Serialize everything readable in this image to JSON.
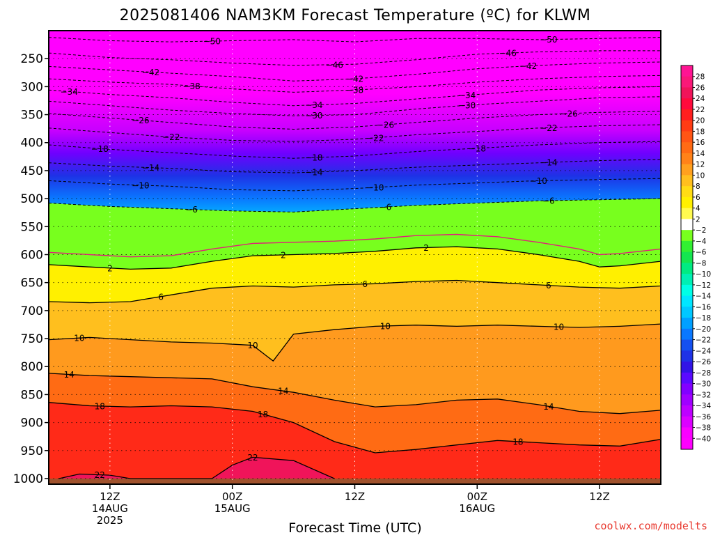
{
  "chart_data": {
    "type": "heatmap",
    "title": "2025081406 NAM3KM Forecast Temperature (ºC) for KLWM",
    "xlabel": "Forecast Time (UTC)",
    "ylabel": "",
    "credit": "coolwx.com/modelts",
    "x_unit": "forecast hour",
    "xlim": [
      6,
      66
    ],
    "x_ticks": [
      {
        "x": 12,
        "l1": "12Z",
        "l2": "14AUG",
        "l3": "2025"
      },
      {
        "x": 24,
        "l1": "00Z",
        "l2": "15AUG",
        "l3": ""
      },
      {
        "x": 36,
        "l1": "12Z",
        "l2": "",
        "l3": ""
      },
      {
        "x": 48,
        "l1": "00Z",
        "l2": "16AUG",
        "l3": ""
      },
      {
        "x": 60,
        "l1": "12Z",
        "l2": "",
        "l3": ""
      }
    ],
    "y_unit": "hPa",
    "ylim": [
      1010,
      200
    ],
    "y_ticks": [
      "250",
      "300",
      "350",
      "400",
      "450",
      "500",
      "550",
      "600",
      "650",
      "700",
      "750",
      "800",
      "850",
      "900",
      "950",
      "1000"
    ],
    "ground_level_hPa": 1000,
    "ground_color": "#a0522d",
    "freezing_line_color": "#e0207a",
    "colorbar": {
      "ticks": [
        "28",
        "26",
        "24",
        "22",
        "20",
        "18",
        "16",
        "14",
        "12",
        "10",
        "8",
        "6",
        "4",
        "2",
        "−2",
        "−4",
        "−6",
        "−8",
        "−10",
        "−12",
        "−14",
        "−16",
        "−18",
        "−20",
        "−22",
        "−24",
        "−26",
        "−28",
        "−30",
        "−32",
        "−34",
        "−36",
        "−38",
        "−40"
      ],
      "colors": [
        "#ff1493",
        "#fa1878",
        "#f0145a",
        "#ff0a3c",
        "#ff1f1f",
        "#ff3c14",
        "#ff5514",
        "#ff6b14",
        "#ff8219",
        "#ffa01e",
        "#ffbf1e",
        "#ffdc14",
        "#fff000",
        "#fffa50",
        "#ffffff",
        "#78ff1e",
        "#32f032",
        "#14e650",
        "#00eb82",
        "#00f0b4",
        "#00ffe6",
        "#00e6ff",
        "#00c8ff",
        "#00a0ff",
        "#0a78ff",
        "#1450f0",
        "#1e32e6",
        "#3214e6",
        "#5a0aff",
        "#8200ff",
        "#a000ff",
        "#be00ff",
        "#dc00ff",
        "#fa00ff",
        "#ff00ff"
      ]
    },
    "contour_labels": [
      "−50",
      "−46",
      "−42",
      "−38",
      "−34",
      "−30",
      "−26",
      "−22",
      "−18",
      "−14",
      "−10",
      "−6",
      "2",
      "6",
      "10",
      "14",
      "18",
      "22"
    ],
    "isotherms": [
      {
        "value": -50,
        "positive": false,
        "labels_at": [
          22,
          55
        ],
        "points": [
          [
            6,
            212
          ],
          [
            12,
            218
          ],
          [
            18,
            220
          ],
          [
            24,
            218
          ],
          [
            30,
            216
          ],
          [
            36,
            220
          ],
          [
            42,
            214
          ],
          [
            48,
            214
          ],
          [
            54,
            216
          ],
          [
            60,
            214
          ],
          [
            66,
            212
          ]
        ]
      },
      {
        "value": -46,
        "positive": false,
        "labels_at": [
          34,
          51
        ],
        "points": [
          [
            6,
            240
          ],
          [
            12,
            248
          ],
          [
            18,
            252
          ],
          [
            24,
            258
          ],
          [
            30,
            262
          ],
          [
            36,
            260
          ],
          [
            42,
            252
          ],
          [
            48,
            242
          ],
          [
            54,
            238
          ],
          [
            60,
            236
          ],
          [
            66,
            236
          ]
        ]
      },
      {
        "value": -42,
        "positive": false,
        "labels_at": [
          16,
          36,
          53
        ],
        "points": [
          [
            6,
            264
          ],
          [
            12,
            270
          ],
          [
            18,
            276
          ],
          [
            24,
            282
          ],
          [
            30,
            290
          ],
          [
            36,
            286
          ],
          [
            42,
            278
          ],
          [
            48,
            268
          ],
          [
            54,
            262
          ],
          [
            60,
            258
          ],
          [
            66,
            256
          ]
        ]
      },
      {
        "value": -38,
        "positive": false,
        "labels_at": [
          20,
          36
        ],
        "points": [
          [
            6,
            286
          ],
          [
            12,
            292
          ],
          [
            18,
            296
          ],
          [
            24,
            304
          ],
          [
            30,
            310
          ],
          [
            36,
            306
          ],
          [
            42,
            300
          ],
          [
            48,
            292
          ],
          [
            54,
            286
          ],
          [
            60,
            282
          ],
          [
            66,
            280
          ]
        ]
      },
      {
        "value": -34,
        "positive": false,
        "labels_at": [
          8,
          32,
          47
        ],
        "points": [
          [
            6,
            306
          ],
          [
            12,
            314
          ],
          [
            18,
            320
          ],
          [
            24,
            328
          ],
          [
            30,
            334
          ],
          [
            36,
            330
          ],
          [
            42,
            322
          ],
          [
            48,
            314
          ],
          [
            54,
            306
          ],
          [
            60,
            302
          ],
          [
            66,
            300
          ]
        ]
      },
      {
        "value": -30,
        "positive": false,
        "labels_at": [
          32,
          47
        ],
        "points": [
          [
            6,
            326
          ],
          [
            12,
            334
          ],
          [
            18,
            342
          ],
          [
            24,
            348
          ],
          [
            30,
            352
          ],
          [
            36,
            350
          ],
          [
            42,
            340
          ],
          [
            48,
            332
          ],
          [
            54,
            326
          ],
          [
            60,
            320
          ],
          [
            66,
            318
          ]
        ]
      },
      {
        "value": -26,
        "positive": false,
        "labels_at": [
          15,
          39,
          57
        ],
        "points": [
          [
            6,
            348
          ],
          [
            12,
            356
          ],
          [
            18,
            364
          ],
          [
            24,
            372
          ],
          [
            30,
            376
          ],
          [
            36,
            372
          ],
          [
            42,
            364
          ],
          [
            48,
            356
          ],
          [
            54,
            350
          ],
          [
            60,
            346
          ],
          [
            66,
            344
          ]
        ]
      },
      {
        "value": -22,
        "positive": false,
        "labels_at": [
          18,
          38,
          55
        ],
        "points": [
          [
            6,
            374
          ],
          [
            12,
            382
          ],
          [
            18,
            390
          ],
          [
            24,
            396
          ],
          [
            30,
            398
          ],
          [
            36,
            394
          ],
          [
            42,
            386
          ],
          [
            48,
            380
          ],
          [
            54,
            374
          ],
          [
            60,
            370
          ],
          [
            66,
            368
          ]
        ]
      },
      {
        "value": -18,
        "positive": false,
        "labels_at": [
          11,
          32,
          48
        ],
        "points": [
          [
            6,
            404
          ],
          [
            12,
            412
          ],
          [
            18,
            418
          ],
          [
            24,
            424
          ],
          [
            30,
            428
          ],
          [
            36,
            424
          ],
          [
            42,
            416
          ],
          [
            48,
            410
          ],
          [
            54,
            404
          ],
          [
            60,
            400
          ],
          [
            66,
            398
          ]
        ]
      },
      {
        "value": -14,
        "positive": false,
        "labels_at": [
          16,
          32,
          55
        ],
        "points": [
          [
            6,
            436
          ],
          [
            12,
            442
          ],
          [
            18,
            446
          ],
          [
            24,
            452
          ],
          [
            30,
            454
          ],
          [
            36,
            450
          ],
          [
            42,
            444
          ],
          [
            48,
            440
          ],
          [
            54,
            436
          ],
          [
            60,
            432
          ],
          [
            66,
            430
          ]
        ]
      },
      {
        "value": -10,
        "positive": false,
        "labels_at": [
          15,
          38,
          54
        ],
        "points": [
          [
            6,
            468
          ],
          [
            12,
            474
          ],
          [
            18,
            478
          ],
          [
            24,
            484
          ],
          [
            30,
            486
          ],
          [
            36,
            482
          ],
          [
            42,
            476
          ],
          [
            48,
            472
          ],
          [
            54,
            468
          ],
          [
            60,
            466
          ],
          [
            66,
            464
          ]
        ]
      },
      {
        "value": -6,
        "positive": false,
        "labels_at": [
          20,
          39,
          55
        ],
        "points": [
          [
            6,
            508
          ],
          [
            12,
            514
          ],
          [
            18,
            518
          ],
          [
            24,
            522
          ],
          [
            30,
            524
          ],
          [
            36,
            518
          ],
          [
            42,
            512
          ],
          [
            48,
            508
          ],
          [
            54,
            504
          ],
          [
            60,
            502
          ],
          [
            66,
            500
          ]
        ]
      },
      {
        "value": 2,
        "positive": true,
        "labels_at": [
          12,
          29,
          43
        ],
        "points": [
          [
            6,
            618
          ],
          [
            10,
            622
          ],
          [
            14,
            626
          ],
          [
            18,
            624
          ],
          [
            22,
            612
          ],
          [
            26,
            602
          ],
          [
            30,
            600
          ],
          [
            34,
            598
          ],
          [
            38,
            594
          ],
          [
            42,
            588
          ],
          [
            46,
            586
          ],
          [
            50,
            590
          ],
          [
            54,
            600
          ],
          [
            58,
            612
          ],
          [
            60,
            622
          ],
          [
            62,
            620
          ],
          [
            66,
            612
          ]
        ]
      },
      {
        "value": 6,
        "positive": true,
        "labels_at": [
          17,
          37,
          55
        ],
        "points": [
          [
            6,
            684
          ],
          [
            10,
            686
          ],
          [
            14,
            684
          ],
          [
            18,
            672
          ],
          [
            22,
            660
          ],
          [
            26,
            656
          ],
          [
            30,
            658
          ],
          [
            34,
            654
          ],
          [
            38,
            652
          ],
          [
            42,
            648
          ],
          [
            46,
            646
          ],
          [
            50,
            650
          ],
          [
            54,
            654
          ],
          [
            58,
            658
          ],
          [
            62,
            660
          ],
          [
            66,
            656
          ]
        ]
      },
      {
        "value": 10,
        "positive": true,
        "labels_at": [
          9,
          26,
          39,
          56
        ],
        "points": [
          [
            6,
            752
          ],
          [
            10,
            748
          ],
          [
            14,
            752
          ],
          [
            18,
            756
          ],
          [
            22,
            758
          ],
          [
            26,
            762
          ],
          [
            28,
            790
          ],
          [
            30,
            742
          ],
          [
            34,
            734
          ],
          [
            38,
            728
          ],
          [
            42,
            726
          ],
          [
            46,
            728
          ],
          [
            50,
            726
          ],
          [
            54,
            728
          ],
          [
            58,
            730
          ],
          [
            62,
            728
          ],
          [
            66,
            724
          ]
        ]
      },
      {
        "value": 14,
        "positive": true,
        "labels_at": [
          8,
          29,
          55
        ],
        "points": [
          [
            6,
            812
          ],
          [
            10,
            816
          ],
          [
            14,
            818
          ],
          [
            18,
            820
          ],
          [
            22,
            822
          ],
          [
            26,
            836
          ],
          [
            30,
            846
          ],
          [
            34,
            860
          ],
          [
            38,
            872
          ],
          [
            42,
            868
          ],
          [
            46,
            860
          ],
          [
            50,
            858
          ],
          [
            54,
            868
          ],
          [
            58,
            880
          ],
          [
            62,
            884
          ],
          [
            66,
            878
          ]
        ]
      },
      {
        "value": 18,
        "positive": true,
        "labels_at": [
          11,
          27,
          52
        ],
        "points": [
          [
            6,
            864
          ],
          [
            10,
            870
          ],
          [
            14,
            872
          ],
          [
            18,
            870
          ],
          [
            22,
            872
          ],
          [
            26,
            880
          ],
          [
            30,
            900
          ],
          [
            34,
            934
          ],
          [
            38,
            954
          ],
          [
            42,
            948
          ],
          [
            46,
            940
          ],
          [
            50,
            932
          ],
          [
            54,
            936
          ],
          [
            58,
            940
          ],
          [
            62,
            942
          ],
          [
            66,
            930
          ]
        ]
      },
      {
        "value": 22,
        "positive": true,
        "labels_at": [
          11,
          26
        ],
        "points": [
          [
            7,
            1000
          ],
          [
            9,
            992
          ],
          [
            12,
            994
          ],
          [
            14,
            1000
          ],
          [
            22,
            1000
          ],
          [
            24,
            976
          ],
          [
            26,
            962
          ],
          [
            30,
            968
          ],
          [
            34,
            1000
          ]
        ]
      }
    ]
  }
}
